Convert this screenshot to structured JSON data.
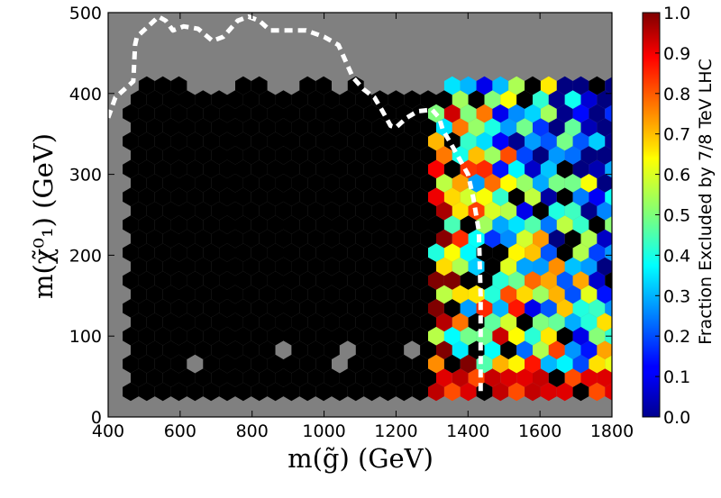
{
  "chart_data": {
    "type": "heatmap",
    "subtype": "hexbin",
    "title": "",
    "xlabel": "m(g̃) (GeV)",
    "ylabel": "m(χ̃⁰₁) (GeV)",
    "xlim": [
      400,
      1800
    ],
    "ylim": [
      0,
      500
    ],
    "x_ticks": [
      "400",
      "600",
      "800",
      "1000",
      "1200",
      "1400",
      "1600",
      "1800"
    ],
    "y_ticks": [
      "0",
      "100",
      "200",
      "300",
      "400",
      "500"
    ],
    "colorbar": {
      "label": "Fraction Excluded by 7/8 TeV LHC",
      "range": [
        0.0,
        1.0
      ],
      "colormap": "jet",
      "ticks": [
        "0.0",
        "0.1",
        "0.2",
        "0.3",
        "0.4",
        "0.5",
        "0.6",
        "0.7",
        "0.8",
        "0.9",
        "1.0"
      ]
    },
    "background_color": "#808080",
    "fully_excluded_color": "#000000",
    "summary": "Fraction of models excluded is ~1.0 (black) for gluino mass below ~1300 GeV across most neutralino masses; mixed fractions 0–0.9 above ~1300 GeV, with lowest values near 1550–1800 GeV at high neutralino mass.",
    "contour": {
      "style": "white dashed",
      "points": [
        [
          400,
          370
        ],
        [
          420,
          395
        ],
        [
          470,
          415
        ],
        [
          475,
          460
        ],
        [
          480,
          470
        ],
        [
          540,
          495
        ],
        [
          560,
          490
        ],
        [
          580,
          478
        ],
        [
          610,
          483
        ],
        [
          650,
          480
        ],
        [
          690,
          465
        ],
        [
          720,
          470
        ],
        [
          760,
          490
        ],
        [
          790,
          495
        ],
        [
          820,
          490
        ],
        [
          850,
          478
        ],
        [
          900,
          478
        ],
        [
          950,
          478
        ],
        [
          1000,
          470
        ],
        [
          1040,
          460
        ],
        [
          1060,
          440
        ],
        [
          1080,
          420
        ],
        [
          1110,
          405
        ],
        [
          1140,
          395
        ],
        [
          1160,
          380
        ],
        [
          1185,
          360
        ],
        [
          1200,
          358
        ],
        [
          1230,
          370
        ],
        [
          1260,
          378
        ],
        [
          1300,
          380
        ],
        [
          1320,
          370
        ],
        [
          1330,
          355
        ],
        [
          1350,
          340
        ],
        [
          1375,
          320
        ],
        [
          1400,
          300
        ],
        [
          1415,
          270
        ],
        [
          1430,
          230
        ],
        [
          1435,
          150
        ],
        [
          1435,
          80
        ],
        [
          1435,
          30
        ]
      ]
    }
  }
}
